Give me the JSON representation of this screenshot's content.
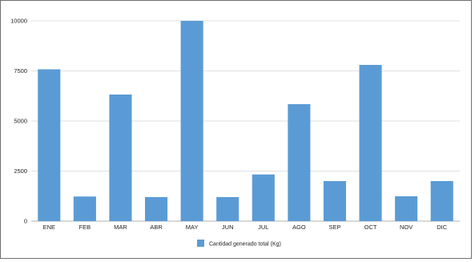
{
  "chart_data": {
    "type": "bar",
    "categories": [
      "ENE",
      "FEB",
      "MAR",
      "ABR",
      "MAY",
      "JUN",
      "JUL",
      "AGO",
      "SEP",
      "OCT",
      "NOV",
      "DIC"
    ],
    "series": [
      {
        "name": "Cantidad generado total (Kg)",
        "color": "#5b9bd5",
        "values": [
          7580,
          1230,
          6320,
          1200,
          10000,
          1200,
          2330,
          5840,
          2000,
          7800,
          1240,
          2000
        ]
      }
    ],
    "title": "",
    "xlabel": "",
    "ylabel": "",
    "ylim": [
      0,
      10000
    ],
    "yticks": [
      "0",
      "2500",
      "5000",
      "7500",
      "10000"
    ],
    "grid": true,
    "legend_position": "bottom"
  }
}
